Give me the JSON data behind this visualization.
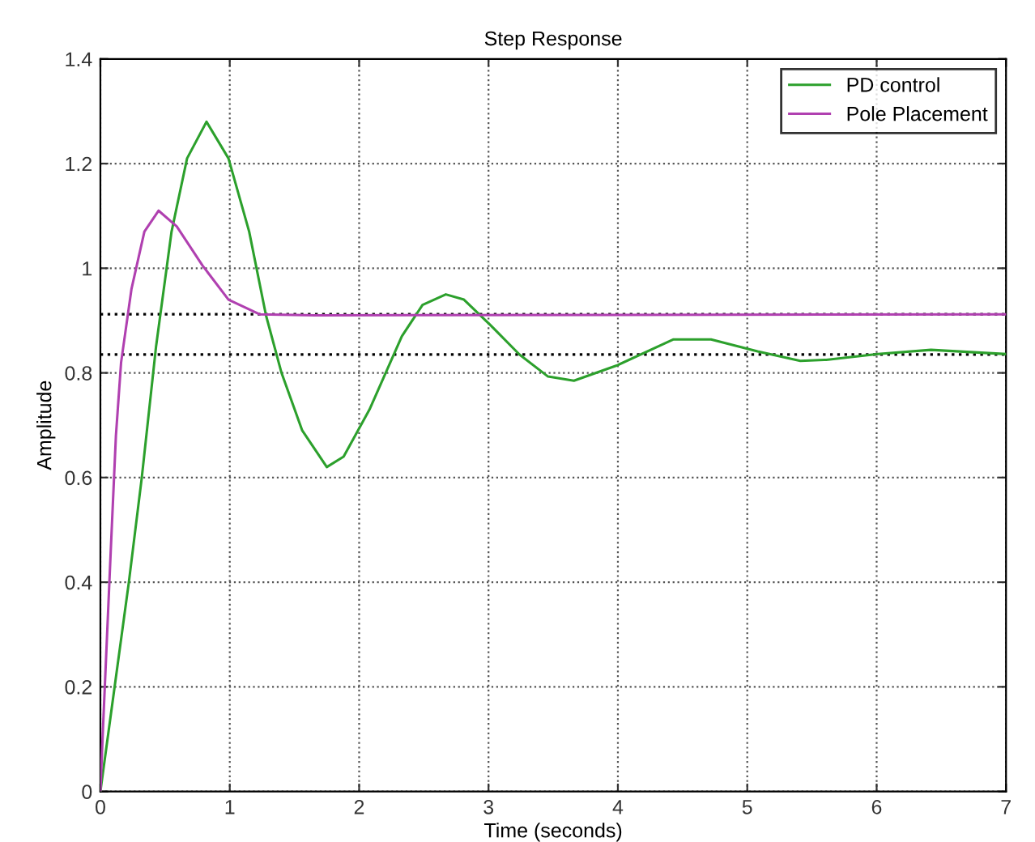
{
  "chart_data": {
    "type": "line",
    "title": "Step Response",
    "xlabel": "Time (seconds)",
    "ylabel": "Amplitude",
    "xlim": [
      0,
      7
    ],
    "ylim": [
      0,
      1.4
    ],
    "xticks": [
      0,
      1,
      2,
      3,
      4,
      5,
      6,
      7
    ],
    "yticks": [
      0,
      0.2,
      0.4,
      0.6,
      0.8,
      1,
      1.2,
      1.4
    ],
    "grid": true,
    "legend": "top right",
    "line_style": "solid",
    "marker": "none",
    "series": [
      {
        "name": "PD control",
        "color": "#2ca02c",
        "x": [
          0,
          0.22,
          0.32,
          0.43,
          0.55,
          0.67,
          0.82,
          0.99,
          1.15,
          1.28,
          1.4,
          1.56,
          1.75,
          1.88,
          2.08,
          2.33,
          2.49,
          2.67,
          2.81,
          3.02,
          3.24,
          3.46,
          3.66,
          3.99,
          4.43,
          4.72,
          5.08,
          5.41,
          5.61,
          6.01,
          6.42,
          7
        ],
        "values": [
          0,
          0.4,
          0.6,
          0.85,
          1.07,
          1.21,
          1.28,
          1.21,
          1.07,
          0.91,
          0.8,
          0.69,
          0.62,
          0.64,
          0.73,
          0.87,
          0.93,
          0.95,
          0.94,
          0.89,
          0.835,
          0.793,
          0.785,
          0.814,
          0.864,
          0.864,
          0.841,
          0.823,
          0.825,
          0.836,
          0.844,
          0.836
        ]
      },
      {
        "name": "Pole Placement",
        "color": "#b040b0",
        "x": [
          0,
          0.02,
          0.08,
          0.12,
          0.16,
          0.24,
          0.34,
          0.45,
          0.59,
          0.79,
          0.99,
          1.23,
          1.66,
          7
        ],
        "values": [
          0,
          0.12,
          0.46,
          0.68,
          0.82,
          0.96,
          1.07,
          1.11,
          1.08,
          1.005,
          0.94,
          0.912,
          0.91,
          0.912
        ]
      }
    ],
    "ref_lines": [
      {
        "axis": "y",
        "value": 0.912,
        "color": "#000000",
        "line_style": "dotted"
      },
      {
        "axis": "y",
        "value": 0.835,
        "color": "#000000",
        "line_style": "dotted"
      }
    ]
  }
}
